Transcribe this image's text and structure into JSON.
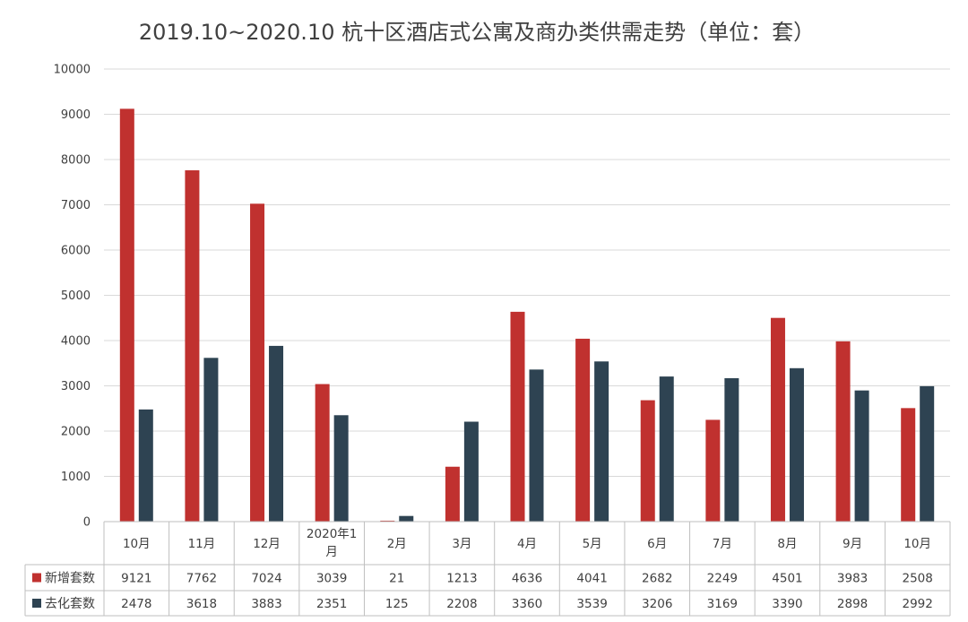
{
  "chart_data": {
    "type": "bar",
    "title": "2019.10~2020.10 杭十区酒店式公寓及商办类供需走势（单位：套）",
    "categories": [
      "10月",
      "11月",
      "12月",
      "2020年1月",
      "2月",
      "3月",
      "4月",
      "5月",
      "6月",
      "7月",
      "8月",
      "9月",
      "10月"
    ],
    "y_ticks": [
      "0",
      "1000",
      "2000",
      "3000",
      "4000",
      "5000",
      "6000",
      "7000",
      "8000",
      "9000",
      "10000"
    ],
    "ylim": [
      0,
      10000
    ],
    "grid": true,
    "legend_placement": "data-table",
    "series": [
      {
        "name": "新增套数",
        "color": "#C0312F",
        "values": [
          9121,
          7762,
          7024,
          3039,
          21,
          1213,
          4636,
          4041,
          2682,
          2249,
          4501,
          3983,
          2508
        ],
        "labels": [
          "9121",
          "7762",
          "7024",
          "3039",
          "21",
          "1213",
          "4636",
          "4041",
          "2682",
          "2249",
          "4501",
          "3983",
          "2508"
        ]
      },
      {
        "name": "去化套数",
        "color": "#2E4352",
        "values": [
          2478,
          3618,
          3883,
          2351,
          125,
          2208,
          3360,
          3539,
          3206,
          3169,
          3390,
          2898,
          2992
        ],
        "labels": [
          "2478",
          "3618",
          "3883",
          "2351",
          "125",
          "2208",
          "3360",
          "3539",
          "3206",
          "3169",
          "3390",
          "2898",
          "2992"
        ]
      }
    ]
  }
}
